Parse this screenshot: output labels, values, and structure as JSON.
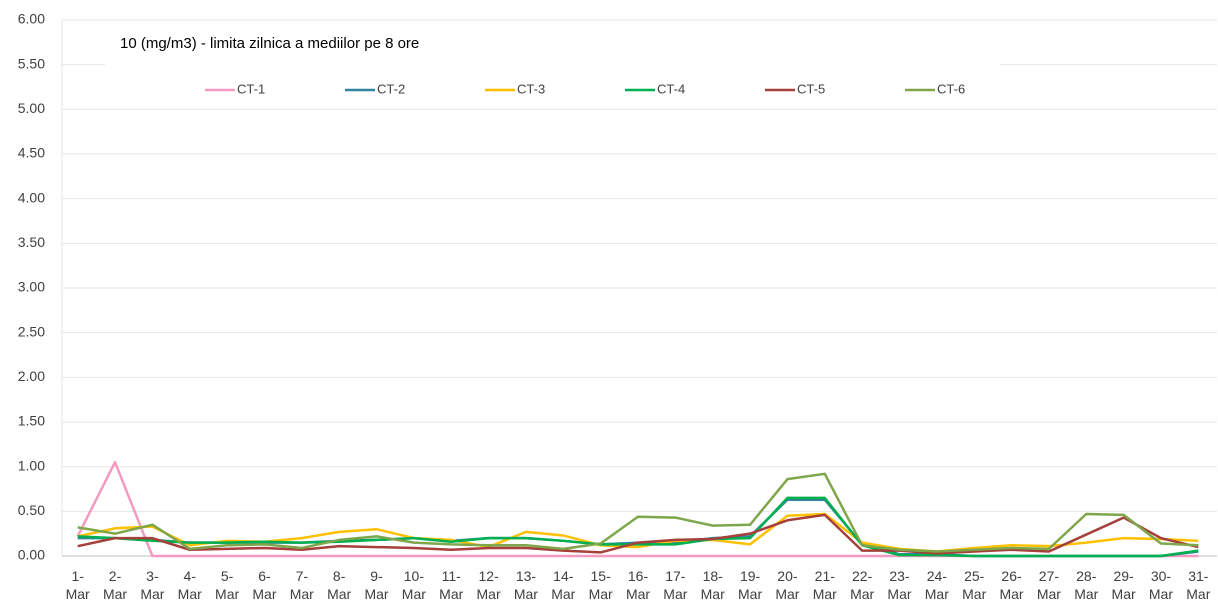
{
  "chart_data": {
    "type": "line",
    "annotation": "10 (mg/m3) - limita zilnica  a mediilor pe 8 ore",
    "categories": [
      "1- Mar",
      "2- Mar",
      "3- Mar",
      "4- Mar",
      "5- Mar",
      "6- Mar",
      "7- Mar",
      "8- Mar",
      "9- Mar",
      "10- Mar",
      "11- Mar",
      "12- Mar",
      "13- Mar",
      "14- Mar",
      "15- Mar",
      "16- Mar",
      "17- Mar",
      "18- Mar",
      "19- Mar",
      "20- Mar",
      "21- Mar",
      "22- Mar",
      "23- Mar",
      "24- Mar",
      "25- Mar",
      "26- Mar",
      "27- Mar",
      "28- Mar",
      "29- Mar",
      "30- Mar",
      "31- Mar"
    ],
    "series": [
      {
        "name": "CT-1",
        "color": "#f49ac1",
        "values": [
          0.22,
          1.05,
          0,
          0,
          0,
          0,
          0,
          0,
          0,
          0,
          0,
          0,
          0,
          0,
          0,
          0,
          0,
          0,
          0,
          0,
          0,
          0,
          0,
          0,
          0,
          0,
          0,
          0,
          0,
          0,
          0
        ]
      },
      {
        "name": "CT-2",
        "color": "#31859c",
        "values": [
          0.2,
          0.2,
          0.18,
          0.15,
          0.15,
          0.15,
          0.15,
          0.17,
          0.18,
          0.2,
          0.17,
          0.2,
          0.2,
          0.17,
          0.13,
          0.15,
          0.15,
          0.2,
          0.22,
          0.63,
          0.63,
          0.13,
          0.02,
          0.02,
          0,
          0,
          0,
          0,
          0,
          0,
          0.05
        ]
      },
      {
        "name": "CT-3",
        "color": "#ffc000",
        "values": [
          0.22,
          0.31,
          0.33,
          0.12,
          0.17,
          0.16,
          0.2,
          0.27,
          0.3,
          0.2,
          0.18,
          0.1,
          0.27,
          0.23,
          0.12,
          0.1,
          0.17,
          0.18,
          0.13,
          0.45,
          0.47,
          0.15,
          0.08,
          0.05,
          0.09,
          0.12,
          0.11,
          0.15,
          0.2,
          0.19,
          0.17
        ]
      },
      {
        "name": "CT-4",
        "color": "#00b050",
        "values": [
          0.22,
          0.2,
          0.17,
          0.15,
          0.15,
          0.16,
          0.15,
          0.16,
          0.18,
          0.2,
          0.16,
          0.2,
          0.2,
          0.17,
          0.13,
          0.13,
          0.13,
          0.19,
          0.2,
          0.65,
          0.65,
          0.12,
          0.01,
          0.01,
          0,
          0,
          0,
          0,
          0,
          0,
          0.06
        ]
      },
      {
        "name": "CT-5",
        "color": "#a5403b",
        "values": [
          0.11,
          0.2,
          0.2,
          0.07,
          0.08,
          0.09,
          0.07,
          0.11,
          0.1,
          0.09,
          0.07,
          0.09,
          0.09,
          0.06,
          0.04,
          0.15,
          0.18,
          0.19,
          0.25,
          0.4,
          0.46,
          0.06,
          0.06,
          0.03,
          0.05,
          0.07,
          0.05,
          0.24,
          0.43,
          0.2,
          0.1
        ]
      },
      {
        "name": "CT-6",
        "color": "#7ea64a",
        "values": [
          0.32,
          0.25,
          0.35,
          0.08,
          0.12,
          0.13,
          0.09,
          0.18,
          0.22,
          0.15,
          0.13,
          0.12,
          0.12,
          0.08,
          0.14,
          0.44,
          0.43,
          0.34,
          0.35,
          0.86,
          0.92,
          0.12,
          0.07,
          0.05,
          0.07,
          0.09,
          0.08,
          0.47,
          0.46,
          0.14,
          0.12
        ]
      }
    ],
    "ylim": [
      0,
      6
    ],
    "yticks": [
      {
        "value": 0,
        "label": "0.00"
      },
      {
        "value": 0.5,
        "label": "0.50"
      },
      {
        "value": 1,
        "label": "1.00"
      },
      {
        "value": 1.5,
        "label": "1.50"
      },
      {
        "value": 2,
        "label": "2.00"
      },
      {
        "value": 2.5,
        "label": "2.50"
      },
      {
        "value": 3,
        "label": "3.00"
      },
      {
        "value": 3.5,
        "label": "3.50"
      },
      {
        "value": 4,
        "label": "4.00"
      },
      {
        "value": 4.5,
        "label": "4.50"
      },
      {
        "value": 5,
        "label": "5.00"
      },
      {
        "value": 5.5,
        "label": "5.50"
      },
      {
        "value": 6,
        "label": "6.00"
      }
    ],
    "grid": true,
    "legend": "top"
  }
}
